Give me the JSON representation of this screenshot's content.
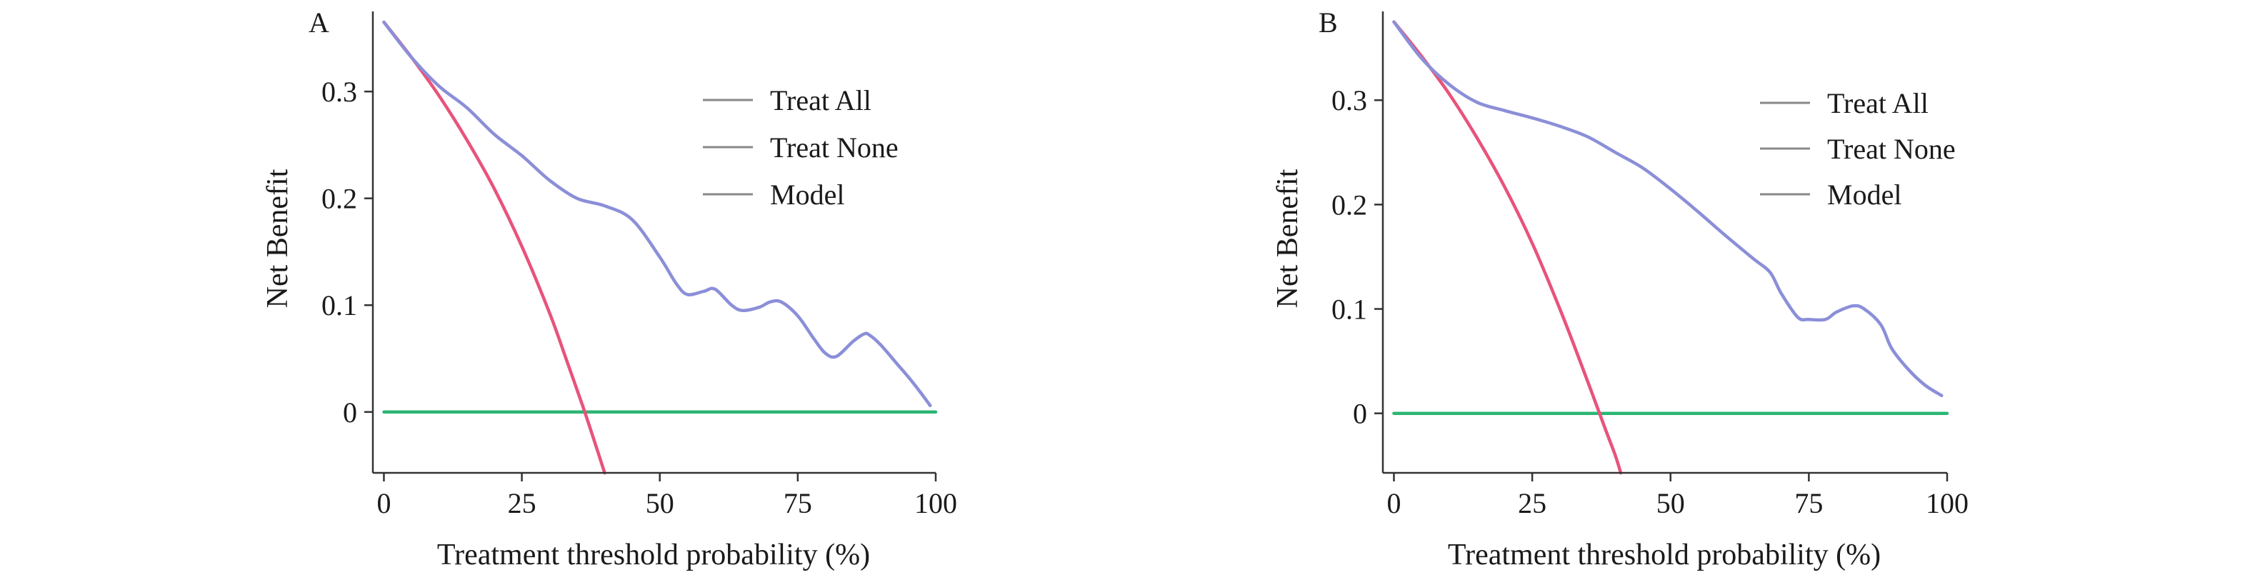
{
  "chart_data": [
    {
      "type": "line",
      "panel_label": "A",
      "xlabel": "Treatment threshold probability (%)",
      "ylabel": "Net Benefit",
      "xlim": [
        -2,
        100
      ],
      "ylim": [
        -0.057,
        0.375
      ],
      "x_ticks": [
        0,
        25,
        50,
        75,
        100
      ],
      "y_ticks": [
        0,
        0.1,
        0.2,
        0.3
      ],
      "y_tick_labels": [
        "0",
        "0.1",
        "0.2",
        "0.3"
      ],
      "legend_position": "top-right",
      "legend_line_color": "#888888",
      "series": [
        {
          "name": "Treat All",
          "color": "#e8537a",
          "x": [
            0,
            5,
            10,
            15,
            20,
            25,
            30,
            33,
            36,
            38,
            40
          ],
          "y": [
            0.365,
            0.332,
            0.296,
            0.255,
            0.209,
            0.155,
            0.093,
            0.05,
            0.006,
            -0.025,
            -0.057
          ]
        },
        {
          "name": "Treat None",
          "color": "#2bb673",
          "x": [
            0,
            100
          ],
          "y": [
            0,
            0
          ]
        },
        {
          "name": "Model",
          "color": "#8b8fd8",
          "x": [
            0,
            5,
            10,
            15,
            20,
            25,
            30,
            35,
            40,
            45,
            50,
            53,
            55,
            58,
            60,
            63,
            65,
            68,
            70,
            72,
            75,
            78,
            80,
            82,
            85,
            87,
            88,
            90,
            93,
            95,
            97,
            99
          ],
          "y": [
            0.365,
            0.332,
            0.305,
            0.285,
            0.26,
            0.24,
            0.217,
            0.2,
            0.193,
            0.18,
            0.145,
            0.12,
            0.11,
            0.113,
            0.115,
            0.1,
            0.095,
            0.098,
            0.103,
            0.103,
            0.09,
            0.068,
            0.055,
            0.052,
            0.066,
            0.073,
            0.072,
            0.063,
            0.045,
            0.033,
            0.02,
            0.006
          ]
        }
      ]
    },
    {
      "type": "line",
      "panel_label": "B",
      "xlabel": "Treatment threshold probability (%)",
      "ylabel": "Net Benefit",
      "xlim": [
        -2,
        100
      ],
      "ylim": [
        -0.057,
        0.385
      ],
      "x_ticks": [
        0,
        25,
        50,
        75,
        100
      ],
      "y_ticks": [
        0,
        0.1,
        0.2,
        0.3
      ],
      "y_tick_labels": [
        "0",
        "0.1",
        "0.2",
        "0.3"
      ],
      "legend_position": "top-right",
      "legend_line_color": "#888888",
      "series": [
        {
          "name": "Treat All",
          "color": "#e8537a",
          "x": [
            0,
            5,
            10,
            15,
            20,
            25,
            30,
            34,
            38,
            40,
            41
          ],
          "y": [
            0.375,
            0.342,
            0.306,
            0.264,
            0.217,
            0.163,
            0.1,
            0.045,
            -0.012,
            -0.04,
            -0.057
          ]
        },
        {
          "name": "Treat None",
          "color": "#2bb673",
          "x": [
            0,
            100
          ],
          "y": [
            0,
            0
          ]
        },
        {
          "name": "Model",
          "color": "#8b8fd8",
          "x": [
            0,
            5,
            10,
            15,
            20,
            25,
            30,
            35,
            40,
            45,
            50,
            55,
            60,
            65,
            68,
            70,
            73,
            75,
            78,
            80,
            83,
            85,
            88,
            90,
            93,
            96,
            99
          ],
          "y": [
            0.375,
            0.34,
            0.315,
            0.298,
            0.29,
            0.283,
            0.275,
            0.265,
            0.25,
            0.235,
            0.215,
            0.193,
            0.17,
            0.148,
            0.135,
            0.115,
            0.092,
            0.09,
            0.09,
            0.097,
            0.103,
            0.1,
            0.085,
            0.062,
            0.042,
            0.027,
            0.017
          ]
        }
      ]
    }
  ]
}
